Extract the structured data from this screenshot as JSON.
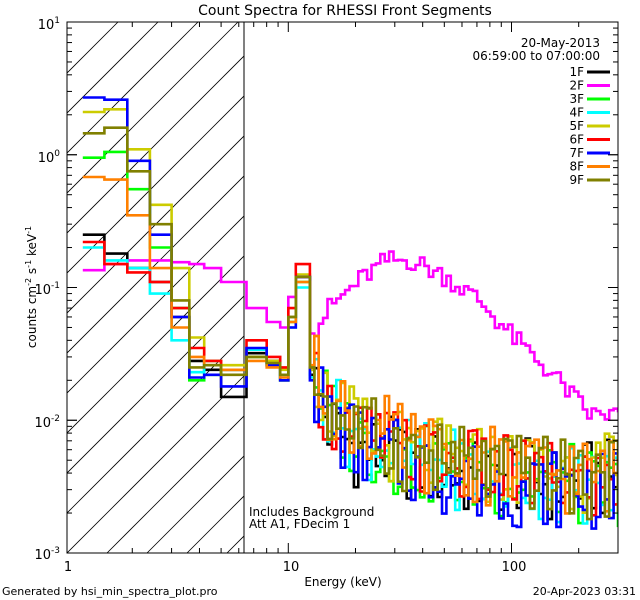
{
  "chart_data": {
    "type": "line",
    "title": "Count Spectra for RHESSI Front Segments",
    "xlabel": "Energy (keV)",
    "ylabel_parts": {
      "a": "counts cm",
      "b": "-2",
      "c": " s",
      "d": "-1",
      "e": " keV",
      "f": "-1"
    },
    "xscale": "log",
    "yscale": "log",
    "xlim": [
      1.02,
      300
    ],
    "ylim": [
      0.001,
      10
    ],
    "x_tick_labels": [
      {
        "value": 1,
        "label": "1"
      },
      {
        "value": 10,
        "label": "10"
      },
      {
        "value": 100,
        "label": "100"
      }
    ],
    "y_tick_labels": [
      {
        "value": 10,
        "base": "10",
        "exp": "1"
      },
      {
        "value": 1,
        "base": "10",
        "exp": "0"
      },
      {
        "value": 0.1,
        "base": "10",
        "exp": "-1"
      },
      {
        "value": 0.01,
        "base": "10",
        "exp": "-2"
      },
      {
        "value": 0.001,
        "base": "10",
        "exp": "-3"
      }
    ],
    "date": "20-May-2013",
    "time_range": "06:59:00 to 07:00:00",
    "annotation_lines": [
      "Includes Background",
      "Att A1, FDecim 1"
    ],
    "hatched_region_upper_kev": 6,
    "series": [
      {
        "name": "1F",
        "color": "#000000",
        "values": [
          0.25,
          0.18,
          0.14,
          0.11,
          0.06,
          0.028,
          0.024,
          0.015,
          0.032,
          0.028,
          0.02,
          0.06,
          0.12,
          0.022,
          0.009,
          0.006,
          0.0055,
          0.0048,
          0.004,
          0.0035,
          0.004,
          0.0032,
          0.0036
        ]
      },
      {
        "name": "2F",
        "color": "#ff00ff",
        "values": [
          0.135,
          0.15,
          0.16,
          0.16,
          0.155,
          0.15,
          0.14,
          0.11,
          0.07,
          0.055,
          0.05,
          0.085,
          0.12,
          0.045,
          0.07,
          0.11,
          0.16,
          0.16,
          0.12,
          0.08,
          0.042,
          0.022,
          0.011
        ]
      },
      {
        "name": "3F",
        "color": "#00ff00",
        "values": [
          0.95,
          1.05,
          0.55,
          0.2,
          0.07,
          0.02,
          0.022,
          0.024,
          0.03,
          0.026,
          0.02,
          0.055,
          0.11,
          0.024,
          0.011,
          0.007,
          0.0058,
          0.0048,
          0.0042,
          0.0038,
          0.0034,
          0.0036,
          0.003
        ]
      },
      {
        "name": "4F",
        "color": "#00ffff",
        "values": [
          0.2,
          0.16,
          0.14,
          0.09,
          0.04,
          0.023,
          0.028,
          0.024,
          0.034,
          0.026,
          0.022,
          0.05,
          0.1,
          0.021,
          0.012,
          0.0075,
          0.0062,
          0.0052,
          0.0045,
          0.0038,
          0.0036,
          0.0034,
          0.0032
        ]
      },
      {
        "name": "5F",
        "color": "#cccc00",
        "values": [
          2.1,
          2.2,
          1.1,
          0.42,
          0.14,
          0.042,
          0.028,
          0.026,
          0.03,
          0.028,
          0.024,
          0.06,
          0.125,
          0.024,
          0.0125,
          0.0085,
          0.0068,
          0.0058,
          0.005,
          0.0046,
          0.0044,
          0.0042,
          0.004
        ]
      },
      {
        "name": "6F",
        "color": "#ff0000",
        "values": [
          0.22,
          0.15,
          0.13,
          0.11,
          0.07,
          0.035,
          0.028,
          0.024,
          0.04,
          0.03,
          0.025,
          0.07,
          0.15,
          0.025,
          0.0115,
          0.0078,
          0.0066,
          0.0055,
          0.0048,
          0.0042,
          0.0038,
          0.0036,
          0.0033
        ]
      },
      {
        "name": "7F",
        "color": "#0000ff",
        "values": [
          2.7,
          2.6,
          0.9,
          0.25,
          0.06,
          0.021,
          0.022,
          0.018,
          0.035,
          0.026,
          0.02,
          0.05,
          0.12,
          0.02,
          0.01,
          0.0065,
          0.0054,
          0.0046,
          0.0038,
          0.0034,
          0.0031,
          0.0031,
          0.0029
        ]
      },
      {
        "name": "8F",
        "color": "#ff8000",
        "values": [
          0.68,
          0.65,
          0.35,
          0.14,
          0.05,
          0.03,
          0.026,
          0.024,
          0.028,
          0.025,
          0.021,
          0.055,
          0.11,
          0.026,
          0.014,
          0.0095,
          0.0076,
          0.006,
          0.0052,
          0.0046,
          0.0042,
          0.004,
          0.0038
        ]
      },
      {
        "name": "9F",
        "color": "#808000",
        "values": [
          1.45,
          1.6,
          0.75,
          0.3,
          0.08,
          0.025,
          0.026,
          0.022,
          0.03,
          0.027,
          0.022,
          0.06,
          0.12,
          0.025,
          0.0125,
          0.0085,
          0.0066,
          0.0056,
          0.0049,
          0.0044,
          0.0041,
          0.0038,
          0.0035
        ]
      }
    ],
    "x_energy_kev": [
      1.2,
      1.5,
      1.9,
      2.4,
      3.0,
      3.6,
      4.2,
      5.0,
      6.5,
      8.0,
      9.2,
      10.0,
      10.8,
      12.5,
      15.0,
      20.0,
      27.0,
      35.0,
      50.0,
      70.0,
      100.0,
      150.0,
      220.0
    ]
  },
  "footer": {
    "left": "Generated by hsi_min_spectra_plot.pro",
    "right": "20-Apr-2023 03:31"
  }
}
